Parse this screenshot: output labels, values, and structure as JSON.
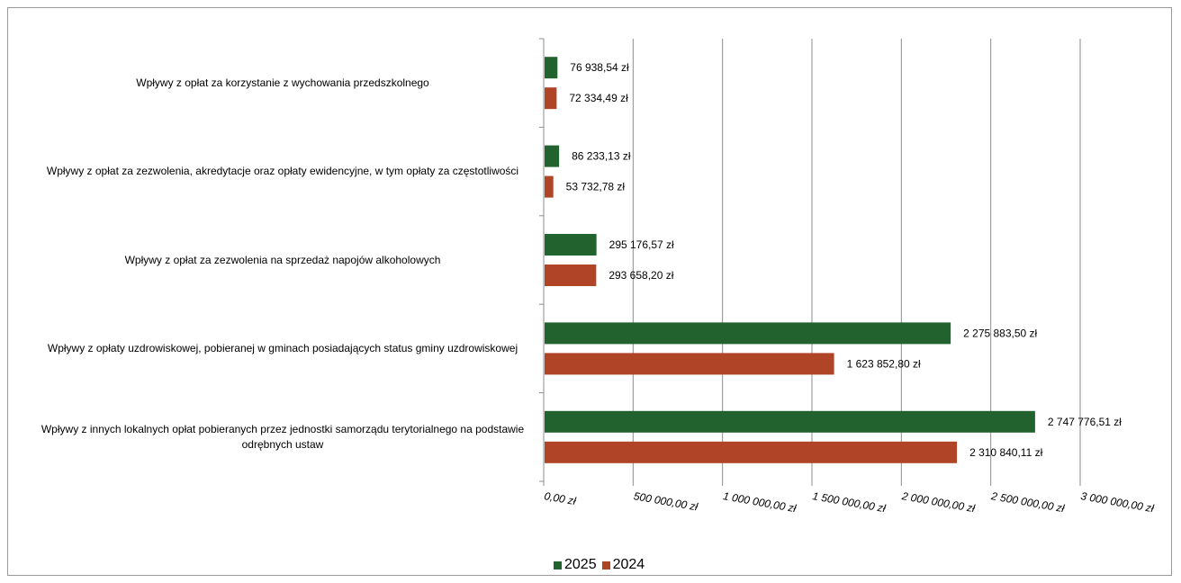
{
  "chart_data": {
    "type": "bar",
    "orientation": "horizontal",
    "categories": [
      "Wpływy z opłat za korzystanie z wychowania przedszkolnego",
      "Wpływy z opłat za zezwolenia, akredytacje oraz opłaty ewidencyjne, w tym opłaty za częstotliwości",
      "Wpływy z opłat za zezwolenia na sprzedaż napojów alkoholowych",
      "Wpływy z opłaty uzdrowiskowej, pobieranej w gminach posiadających status gminy uzdrowiskowej",
      "Wpływy z innych lokalnych opłat pobieranych przez jednostki samorządu terytorialnego na podstawie odrębnych ustaw"
    ],
    "series": [
      {
        "name": "2025",
        "color": "#22622e",
        "values": [
          76938.54,
          86233.13,
          295176.57,
          2275883.5,
          2747776.51
        ],
        "labels": [
          "76 938,54 zł",
          "86 233,13 zł",
          "295 176,57 zł",
          "2 275 883,50 zł",
          "2 747 776,51 zł"
        ]
      },
      {
        "name": "2024",
        "color": "#b04426",
        "values": [
          72334.49,
          53732.78,
          293658.2,
          1623852.8,
          2310840.11
        ],
        "labels": [
          "72 334,49 zł",
          "53 732,78 zł",
          "293 658,20 zł",
          "1 623 852,80 zł",
          "2 310 840,11 zł"
        ]
      }
    ],
    "xlim": [
      0,
      3000000
    ],
    "x_ticks": [
      0,
      500000,
      1000000,
      1500000,
      2000000,
      2500000,
      3000000
    ],
    "x_tick_labels": [
      "0,00 zł",
      "500 000,00 zł",
      "1 000 000,00 zł",
      "1 500 000,00 zł",
      "2 000 000,00 zł",
      "2 500 000,00 zł",
      "3 000 000,00 zł"
    ],
    "grid": true,
    "legend_position": "bottom"
  }
}
